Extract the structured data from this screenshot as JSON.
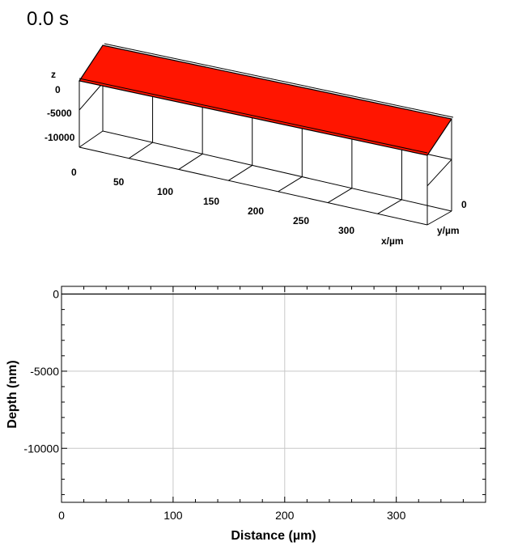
{
  "time_label": "0.0 s",
  "colors": {
    "surface": "#ff1500",
    "grid": "#c8c8c8",
    "line": "#000000"
  },
  "chart_data": [
    {
      "type": "surface3d",
      "title": "",
      "xlabel": "x/µm",
      "ylabel": "y/µm",
      "zlabel": "z",
      "x_ticks": [
        "0",
        "50",
        "100",
        "150",
        "200",
        "250",
        "300"
      ],
      "y_ticks": [
        "0"
      ],
      "z_ticks": [
        "0",
        "-5000",
        "-10000"
      ],
      "surface": {
        "x_range": [
          0,
          380
        ],
        "depth": 0,
        "color": "#ff1500"
      }
    },
    {
      "type": "line",
      "title": "",
      "xlabel": "Distance (µm)",
      "ylabel": "Depth (nm)",
      "xlim": [
        0,
        380
      ],
      "ylim": [
        -13500,
        500
      ],
      "x_ticks": [
        "0",
        "100",
        "200",
        "300"
      ],
      "y_ticks": [
        "0",
        "-5000",
        "-10000"
      ],
      "grid": true,
      "series": [
        {
          "x": [
            0,
            380
          ],
          "y": [
            0,
            0
          ]
        }
      ]
    }
  ]
}
